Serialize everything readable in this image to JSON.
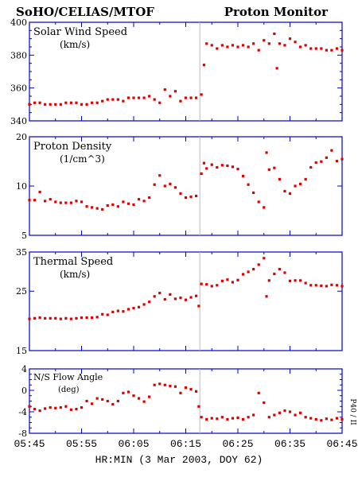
{
  "header": {
    "left_title": "SoHO/CELIAS/MTOF",
    "right_title": "Proton Monitor"
  },
  "xaxis": {
    "label": "HR:MIN (3 Mar 2003, DOY 62)",
    "ticks": [
      "05:45",
      "05:55",
      "06:05",
      "06:15",
      "06:25",
      "06:35",
      "06:45"
    ],
    "range_minutes": [
      0,
      60
    ]
  },
  "side_label": "P40 / II",
  "colors": {
    "axis": "#0000cc",
    "data": "#dd0000",
    "gap_line": "#bbbbbb",
    "text": "#000000"
  },
  "chart_data": [
    {
      "type": "scatter",
      "id": "speed",
      "label_line1": "Solar Wind Speed",
      "label_line2": "(km/s)",
      "ylim": [
        340,
        400
      ],
      "yticks": [
        "340",
        "360",
        "380",
        "400"
      ],
      "gap_marker_min": 32.7,
      "points": [
        [
          0,
          350
        ],
        [
          1,
          351
        ],
        [
          2,
          351
        ],
        [
          3,
          350
        ],
        [
          4,
          350
        ],
        [
          5,
          350
        ],
        [
          6,
          350
        ],
        [
          7,
          351
        ],
        [
          8,
          351
        ],
        [
          9,
          351
        ],
        [
          10,
          350
        ],
        [
          11,
          350
        ],
        [
          12,
          351
        ],
        [
          13,
          351
        ],
        [
          14,
          352
        ],
        [
          15,
          353
        ],
        [
          16,
          353
        ],
        [
          17,
          353
        ],
        [
          18,
          352
        ],
        [
          19,
          354
        ],
        [
          20,
          354
        ],
        [
          21,
          354
        ],
        [
          22,
          354
        ],
        [
          23,
          355
        ],
        [
          24,
          353
        ],
        [
          25,
          351
        ],
        [
          26,
          359
        ],
        [
          27,
          355
        ],
        [
          28,
          358
        ],
        [
          29,
          352
        ],
        [
          30,
          354
        ],
        [
          31,
          354
        ],
        [
          32,
          354
        ],
        [
          33,
          356
        ],
        [
          33.5,
          374
        ],
        [
          34,
          387
        ],
        [
          35,
          386
        ],
        [
          36,
          384
        ],
        [
          37,
          386
        ],
        [
          38,
          385
        ],
        [
          39,
          386
        ],
        [
          40,
          385
        ],
        [
          41,
          386
        ],
        [
          42,
          385
        ],
        [
          43,
          387
        ],
        [
          44,
          383
        ],
        [
          45,
          389
        ],
        [
          46,
          387
        ],
        [
          47,
          393
        ],
        [
          47.5,
          372
        ],
        [
          48,
          387
        ],
        [
          49,
          386
        ],
        [
          50,
          390
        ],
        [
          51,
          388
        ],
        [
          52,
          385
        ],
        [
          53,
          386
        ],
        [
          54,
          384
        ],
        [
          55,
          384
        ],
        [
          56,
          384
        ],
        [
          57,
          383
        ],
        [
          58,
          383
        ],
        [
          59,
          384
        ],
        [
          60,
          383
        ]
      ]
    },
    {
      "type": "scatter",
      "id": "density",
      "label_line1": "Proton Density",
      "label_line2": "(1/cm^3)",
      "ylim": [
        5,
        20
      ],
      "yticks": [
        "5",
        "10",
        "20"
      ],
      "ylog": true,
      "gap_marker_min": 32.7,
      "points": [
        [
          0,
          8.2
        ],
        [
          1,
          8.2
        ],
        [
          2,
          9.2
        ],
        [
          3,
          8.1
        ],
        [
          4,
          8.3
        ],
        [
          5,
          8.0
        ],
        [
          6,
          7.9
        ],
        [
          7,
          7.9
        ],
        [
          8,
          7.9
        ],
        [
          9,
          8.1
        ],
        [
          10,
          8.0
        ],
        [
          11,
          7.5
        ],
        [
          12,
          7.4
        ],
        [
          13,
          7.3
        ],
        [
          14,
          7.2
        ],
        [
          15,
          7.6
        ],
        [
          16,
          7.7
        ],
        [
          17,
          7.5
        ],
        [
          18,
          8.0
        ],
        [
          19,
          7.8
        ],
        [
          20,
          7.7
        ],
        [
          21,
          8.3
        ],
        [
          22,
          8.1
        ],
        [
          23,
          8.5
        ],
        [
          24,
          10.2
        ],
        [
          25,
          11.6
        ],
        [
          26,
          10.0
        ],
        [
          27,
          10.3
        ],
        [
          28,
          9.8
        ],
        [
          29,
          9.0
        ],
        [
          30,
          8.5
        ],
        [
          31,
          8.6
        ],
        [
          32,
          8.7
        ],
        [
          33,
          11.9
        ],
        [
          33.5,
          13.8
        ],
        [
          34,
          12.8
        ],
        [
          35,
          13.5
        ],
        [
          36,
          13.0
        ],
        [
          37,
          13.4
        ],
        [
          38,
          13.3
        ],
        [
          39,
          13.1
        ],
        [
          40,
          12.7
        ],
        [
          41,
          11.5
        ],
        [
          42,
          10.2
        ],
        [
          43,
          9.1
        ],
        [
          44,
          8.0
        ],
        [
          45,
          7.4
        ],
        [
          45.5,
          16.0
        ],
        [
          46,
          12.6
        ],
        [
          47,
          12.9
        ],
        [
          48,
          11.0
        ],
        [
          49,
          9.3
        ],
        [
          50,
          9.0
        ],
        [
          51,
          10.0
        ],
        [
          52,
          10.3
        ],
        [
          53,
          11.0
        ],
        [
          54,
          13.0
        ],
        [
          55,
          13.9
        ],
        [
          56,
          14.1
        ],
        [
          57,
          14.9
        ],
        [
          58,
          16.5
        ],
        [
          59,
          14.2
        ],
        [
          60,
          14.6
        ]
      ]
    },
    {
      "type": "scatter",
      "id": "thermal",
      "label_line1": "Thermal Speed",
      "label_line2": "(km/s)",
      "ylim": [
        15,
        35
      ],
      "yticks": [
        "15",
        "25",
        "35"
      ],
      "ylog": true,
      "gap_marker_min": 32.7,
      "points": [
        [
          0,
          19.7
        ],
        [
          1,
          19.8
        ],
        [
          2,
          19.9
        ],
        [
          3,
          19.8
        ],
        [
          4,
          19.8
        ],
        [
          5,
          19.8
        ],
        [
          6,
          19.7
        ],
        [
          7,
          19.8
        ],
        [
          8,
          19.7
        ],
        [
          9,
          19.8
        ],
        [
          10,
          19.9
        ],
        [
          11,
          19.9
        ],
        [
          12,
          19.9
        ],
        [
          13,
          20.0
        ],
        [
          14,
          20.5
        ],
        [
          15,
          20.4
        ],
        [
          16,
          20.9
        ],
        [
          17,
          21.1
        ],
        [
          18,
          21.0
        ],
        [
          19,
          21.4
        ],
        [
          20,
          21.6
        ],
        [
          21,
          21.8
        ],
        [
          22,
          22.3
        ],
        [
          23,
          22.8
        ],
        [
          24,
          23.9
        ],
        [
          25,
          24.6
        ],
        [
          26,
          23.3
        ],
        [
          27,
          24.3
        ],
        [
          28,
          23.4
        ],
        [
          29,
          23.6
        ],
        [
          30,
          23.2
        ],
        [
          31,
          23.7
        ],
        [
          32,
          24.0
        ],
        [
          32.5,
          22.0
        ],
        [
          33,
          26.6
        ],
        [
          34,
          26.5
        ],
        [
          35,
          26.1
        ],
        [
          36,
          26.3
        ],
        [
          37,
          27.3
        ],
        [
          38,
          27.6
        ],
        [
          39,
          27.0
        ],
        [
          40,
          27.5
        ],
        [
          41,
          28.9
        ],
        [
          42,
          29.5
        ],
        [
          43,
          30.2
        ],
        [
          44,
          31.4
        ],
        [
          45,
          33.2
        ],
        [
          45.5,
          23.9
        ],
        [
          46,
          27.4
        ],
        [
          47,
          29.0
        ],
        [
          48,
          30.2
        ],
        [
          49,
          29.3
        ],
        [
          50,
          27.3
        ],
        [
          51,
          27.4
        ],
        [
          52,
          27.4
        ],
        [
          53,
          26.8
        ],
        [
          54,
          26.3
        ],
        [
          55,
          26.3
        ],
        [
          56,
          26.2
        ],
        [
          57,
          26.1
        ],
        [
          58,
          26.4
        ],
        [
          59,
          26.3
        ],
        [
          60,
          26.1
        ]
      ]
    },
    {
      "type": "scatter",
      "id": "angle",
      "label_line1": "N/S Flow Angle",
      "label_line2": "(deg)",
      "ylim": [
        -8,
        4
      ],
      "yticks": [
        "-8",
        "-4",
        "0",
        "4"
      ],
      "gap_marker_min": 32.7,
      "points": [
        [
          0,
          -3.0
        ],
        [
          1,
          -3.5
        ],
        [
          2,
          -3.8
        ],
        [
          3,
          -3.4
        ],
        [
          4,
          -3.2
        ],
        [
          5,
          -3.3
        ],
        [
          6,
          -3.2
        ],
        [
          7,
          -3.0
        ],
        [
          8,
          -3.6
        ],
        [
          9,
          -3.5
        ],
        [
          10,
          -3.2
        ],
        [
          11,
          -2.0
        ],
        [
          12,
          -2.5
        ],
        [
          13,
          -1.5
        ],
        [
          14,
          -1.7
        ],
        [
          15,
          -2.0
        ],
        [
          16,
          -2.6
        ],
        [
          17,
          -2.0
        ],
        [
          18,
          -0.5
        ],
        [
          19,
          -0.3
        ],
        [
          20,
          -1.0
        ],
        [
          21,
          -1.5
        ],
        [
          22,
          -2.1
        ],
        [
          23,
          -1.2
        ],
        [
          24,
          1.0
        ],
        [
          25,
          1.2
        ],
        [
          26,
          1.0
        ],
        [
          27,
          0.8
        ],
        [
          28,
          0.7
        ],
        [
          29,
          -0.5
        ],
        [
          30,
          0.5
        ],
        [
          31,
          0.2
        ],
        [
          32,
          -0.2
        ],
        [
          32.5,
          -3.0
        ],
        [
          33,
          -5.0
        ],
        [
          34,
          -5.4
        ],
        [
          35,
          -5.2
        ],
        [
          36,
          -5.3
        ],
        [
          37,
          -5.0
        ],
        [
          38,
          -5.4
        ],
        [
          39,
          -5.2
        ],
        [
          40,
          -5.1
        ],
        [
          41,
          -5.4
        ],
        [
          42,
          -5.0
        ],
        [
          43,
          -4.6
        ],
        [
          44,
          -0.5
        ],
        [
          45,
          -2.3
        ],
        [
          46,
          -5.0
        ],
        [
          47,
          -4.6
        ],
        [
          48,
          -4.2
        ],
        [
          49,
          -3.8
        ],
        [
          50,
          -4.0
        ],
        [
          51,
          -4.6
        ],
        [
          52,
          -4.2
        ],
        [
          53,
          -5.0
        ],
        [
          54,
          -5.2
        ],
        [
          55,
          -5.4
        ],
        [
          56,
          -5.6
        ],
        [
          57,
          -5.3
        ],
        [
          58,
          -5.5
        ],
        [
          59,
          -5.2
        ],
        [
          60,
          -5.4
        ]
      ]
    }
  ]
}
